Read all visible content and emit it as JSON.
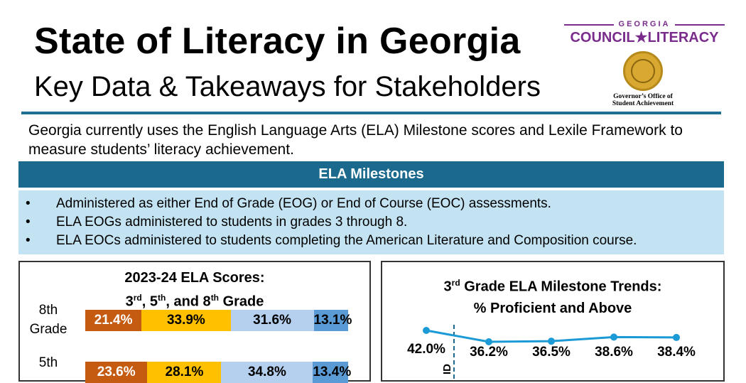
{
  "header": {
    "title": "State of Literacy in Georgia",
    "subtitle": "Key Data & Takeaways for Stakeholders"
  },
  "logo": {
    "org_top": "GEORGIA",
    "org_main": "COUNCIL★LITERACY",
    "seal_caption_line1": "Governor’s Office of",
    "seal_caption_line2": "Student Achievement",
    "brand_color": "#7a2c8c"
  },
  "intro": {
    "text": "Georgia currently uses the English Language Arts (ELA) Milestone scores and Lexile Framework to measure students’ literacy achievement."
  },
  "section": {
    "heading": "ELA Milestones",
    "color": "#1b6a8d",
    "bullets": [
      "Administered as either End of Grade (EOG) or End of Course (EOC) assessments.",
      "ELA EOGs administered to students in grades 3 through 8.",
      "ELA EOCs administered to students completing the American Literature and Composition course."
    ]
  },
  "scores_panel": {
    "title_line1": "2023-24 ELA Scores:",
    "title_line2_parts": [
      "3",
      "rd",
      ", 5",
      "th",
      ", and 8",
      "th",
      " Grade"
    ],
    "grades": [
      {
        "label_line1": "8th",
        "label_line2": "Grade"
      },
      {
        "label_line1": "5th",
        "label_line2": ""
      }
    ]
  },
  "trend_panel": {
    "title_line1_parts": [
      "3",
      "rd",
      " Grade ELA Milestone Trends:"
    ],
    "title_line2": "% Proficient and Above",
    "divider_label": "ID"
  },
  "chart_data": [
    {
      "type": "bar",
      "stacked": true,
      "orientation": "horizontal",
      "title": "2023-24 ELA Scores: 3rd, 5th, and 8th Grade",
      "categories": [
        "8th Grade",
        "5th"
      ],
      "segment_colors": [
        "#c55a11",
        "#ffc000",
        "#b4d0ee",
        "#5b9bd5"
      ],
      "series": [
        {
          "values": [
            21.4,
            23.6
          ],
          "labels": [
            "21.4%",
            "23.6%"
          ]
        },
        {
          "values": [
            33.9,
            28.1
          ],
          "labels": [
            "33.9%",
            "28.1%"
          ]
        },
        {
          "values": [
            31.6,
            34.8
          ],
          "labels": [
            "31.6%",
            "34.8%"
          ]
        },
        {
          "values": [
            13.1,
            13.4
          ],
          "labels": [
            "13.1%",
            "13.4%"
          ]
        }
      ]
    },
    {
      "type": "line",
      "title": "3rd Grade ELA Milestone Trends: % Proficient and Above",
      "color": "#1b9ad6",
      "values": [
        42.0,
        36.2,
        36.5,
        38.6,
        38.4
      ],
      "labels": [
        "42.0%",
        "36.2%",
        "36.5%",
        "38.6%",
        "38.4%"
      ],
      "ylim": [
        30,
        45
      ]
    }
  ]
}
